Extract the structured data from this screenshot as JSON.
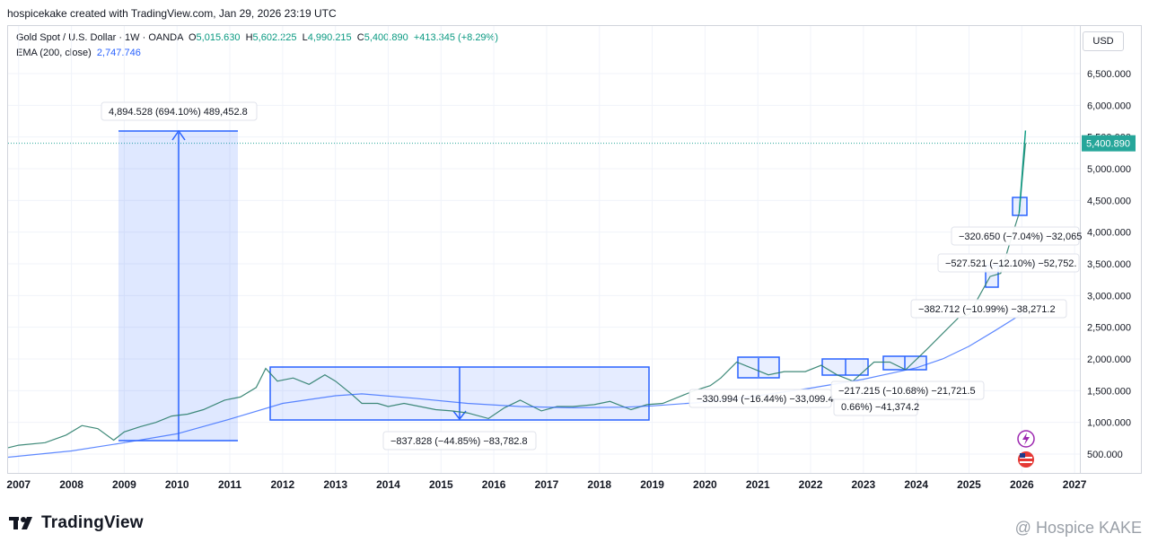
{
  "header": {
    "created_by": "hospicekake created with TradingView.com, Jan 29, 2026 23:19 UTC"
  },
  "legend": {
    "symbol": "Gold Spot / U.S. Dollar · 1W · OANDA",
    "open_label": "O",
    "open": "5,015.630",
    "high_label": "H",
    "high": "5,602.225",
    "low_label": "L",
    "low": "4,990.215",
    "close_label": "C",
    "close": "5,400.890",
    "change": "+413.345 (+8.29%)",
    "ema_label": "EMA (200, close)",
    "ema_value": "2,747.746"
  },
  "currency_button": "USD",
  "colors": {
    "price_line": "#089981",
    "ema_line": "#2962ff",
    "box_fill": "#2962ff",
    "last_price_bg": "#26a69a"
  },
  "chart_data": {
    "type": "line",
    "title": "Gold Spot / U.S. Dollar · 1W · OANDA",
    "xlabel": "",
    "ylabel": "",
    "x_ticks": [
      "2007",
      "2008",
      "2009",
      "2010",
      "2011",
      "2012",
      "2013",
      "2014",
      "2015",
      "2016",
      "2017",
      "2018",
      "2019",
      "2020",
      "2021",
      "2022",
      "2023",
      "2024",
      "2025",
      "2026",
      "2027"
    ],
    "y_ticks": [
      "500.000",
      "1,000.000",
      "1,500.000",
      "2,000.000",
      "2,500.000",
      "3,000.000",
      "3,500.000",
      "4,000.000",
      "4,500.000",
      "5,000.000",
      "5,500.000",
      "6,000.000",
      "6,500.000"
    ],
    "y_tick_values": [
      500,
      1000,
      1500,
      2000,
      2500,
      3000,
      3500,
      4000,
      4500,
      5000,
      5500,
      6000,
      6500
    ],
    "xlim": [
      2006.8,
      2027.1
    ],
    "ylim": [
      50,
      7000
    ],
    "last_price_label": "5,400.890",
    "last_price": 5400.89,
    "series": [
      {
        "name": "Gold Spot / U.S. Dollar",
        "x": [
          2006.8,
          2007.0,
          2007.5,
          2007.9,
          2008.2,
          2008.5,
          2008.8,
          2009.0,
          2009.3,
          2009.6,
          2009.9,
          2010.2,
          2010.5,
          2010.9,
          2011.2,
          2011.5,
          2011.68,
          2011.9,
          2012.2,
          2012.5,
          2012.8,
          2013.0,
          2013.3,
          2013.5,
          2013.8,
          2014.0,
          2014.3,
          2014.6,
          2014.9,
          2015.2,
          2015.5,
          2015.9,
          2016.2,
          2016.5,
          2016.9,
          2017.2,
          2017.5,
          2017.9,
          2018.2,
          2018.6,
          2018.9,
          2019.2,
          2019.5,
          2019.8,
          2020.1,
          2020.3,
          2020.6,
          2020.9,
          2021.2,
          2021.5,
          2021.9,
          2022.2,
          2022.5,
          2022.8,
          2023.2,
          2023.5,
          2023.8,
          2024.2,
          2024.5,
          2024.8,
          2025.0,
          2025.2,
          2025.4,
          2025.6,
          2025.8,
          2025.95,
          2026.07
        ],
        "y": [
          600,
          640,
          680,
          800,
          950,
          900,
          720,
          850,
          930,
          1000,
          1100,
          1130,
          1200,
          1350,
          1400,
          1550,
          1850,
          1650,
          1700,
          1600,
          1750,
          1650,
          1450,
          1300,
          1300,
          1250,
          1300,
          1250,
          1200,
          1180,
          1150,
          1060,
          1230,
          1350,
          1180,
          1250,
          1250,
          1280,
          1330,
          1200,
          1280,
          1300,
          1400,
          1500,
          1580,
          1700,
          1950,
          1850,
          1750,
          1800,
          1800,
          1900,
          1750,
          1650,
          1950,
          1950,
          1830,
          2150,
          2400,
          2650,
          2700,
          3000,
          3300,
          3350,
          3900,
          4300,
          5400
        ]
      },
      {
        "name": "EMA (200, close)",
        "x": [
          2006.8,
          2008.0,
          2009.0,
          2010.0,
          2011.0,
          2012.0,
          2013.0,
          2013.5,
          2014.5,
          2015.5,
          2016.5,
          2017.5,
          2018.5,
          2019.0,
          2020.0,
          2021.0,
          2022.0,
          2023.0,
          2024.0,
          2024.5,
          2025.0,
          2025.5,
          2026.07
        ],
        "y": [
          450,
          550,
          680,
          820,
          1050,
          1300,
          1420,
          1450,
          1380,
          1300,
          1250,
          1230,
          1240,
          1260,
          1320,
          1420,
          1540,
          1680,
          1860,
          2000,
          2200,
          2450,
          2747.746
        ]
      }
    ],
    "annotations": [
      {
        "text": "4,894.528 (694.10%) 489,452.8"
      },
      {
        "text": "−837.828 (−44.85%) −83,782.8"
      },
      {
        "text": "−330.994 (−16.44%) −33,099.4"
      },
      {
        "text": "0.66%) −41,374.2"
      },
      {
        "text": "−217.215 (−10.68%) −21,721.5"
      },
      {
        "text": "−382.712 (−10.99%) −38,271.2"
      },
      {
        "text": "−527.521 (−12.10%) −52,752."
      },
      {
        "text": "−320.650 (−7.04%) −32,065"
      }
    ]
  },
  "footer": {
    "brand": "TradingView",
    "watermark": "@ Hospice KAKE"
  }
}
